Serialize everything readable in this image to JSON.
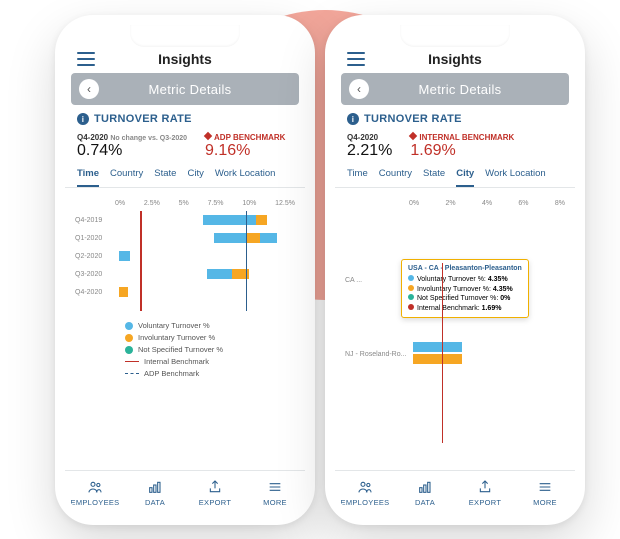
{
  "colors": {
    "brand": "#2c5f8d",
    "danger": "#c03028",
    "grey_bar": "#aab1b8",
    "blob": "#f3a79b",
    "series": {
      "voluntary": "#55b7e6",
      "involuntary": "#f6a623",
      "notspecified": "#2bb39a"
    }
  },
  "nav": {
    "employees": "EMPLOYEES",
    "data": "DATA",
    "export": "EXPORT",
    "more": "MORE"
  },
  "common": {
    "app_title": "Insights",
    "subheader": "Metric Details",
    "section_title": "TURNOVER RATE",
    "tabs": [
      "Time",
      "Country",
      "State",
      "City",
      "Work Location"
    ],
    "legend": {
      "vol": "Voluntary Turnover %",
      "inv": "Involuntary Turnover %",
      "ns": "Not Specified Turnover %",
      "ib": "Internal Benchmark",
      "adp": "ADP Benchmark"
    }
  },
  "left": {
    "active_tab": 0,
    "metric1": {
      "label": "Q4-2020",
      "sub": "No change\nvs. Q3-2020",
      "value": "0.74%"
    },
    "metric2": {
      "label": "ADP BENCHMARK",
      "value": "9.16%"
    },
    "chart": {
      "xticks": [
        "0%",
        "2.5%",
        "5%",
        "7.5%",
        "10%",
        "12.5%"
      ],
      "internal_benchmark_pct": 14,
      "adp_benchmark_pct": 73,
      "rows": [
        {
          "label": "Q4-2019",
          "segs": [
            {
              "c": "voluntary",
              "x": 48,
              "w": 30
            },
            {
              "c": "involuntary",
              "x": 78,
              "w": 6
            }
          ]
        },
        {
          "label": "Q1-2020",
          "segs": [
            {
              "c": "voluntary",
              "x": 54,
              "w": 18
            },
            {
              "c": "involuntary",
              "x": 72,
              "w": 8
            },
            {
              "c": "voluntary",
              "x": 80,
              "w": 10
            }
          ]
        },
        {
          "label": "Q2-2020",
          "segs": [
            {
              "c": "voluntary",
              "x": 0,
              "w": 6
            }
          ]
        },
        {
          "label": "Q3-2020",
          "segs": [
            {
              "c": "voluntary",
              "x": 50,
              "w": 14
            },
            {
              "c": "involuntary",
              "x": 64,
              "w": 10
            }
          ]
        },
        {
          "label": "Q4-2020",
          "segs": [
            {
              "c": "involuntary",
              "x": 0,
              "w": 5
            }
          ]
        }
      ]
    }
  },
  "right": {
    "active_tab": 3,
    "metric1": {
      "label": "Q4-2020",
      "value": "2.21%"
    },
    "metric2": {
      "label": "INTERNAL BENCHMARK",
      "value": "1.69%"
    },
    "chart": {
      "xticks": [
        "0%",
        "2%",
        "4%",
        "6%",
        "8%"
      ],
      "internal_benchmark_pct": 21,
      "rows": [
        {
          "label": "CA ...",
          "segs": [
            {
              "c": "voluntary",
              "x": 0,
              "w": 38
            },
            {
              "c": "involuntary",
              "x": 38,
              "w": 38
            }
          ]
        },
        {
          "label": "NJ - Roseland-Ro...",
          "segs": [
            {
              "c": "voluntary",
              "x": 0,
              "w": 32
            },
            {
              "c": "involuntary",
              "x": 0,
              "w": 32,
              "y": 12
            }
          ]
        }
      ]
    },
    "tooltip": {
      "title": "USA - CA - Pleasanton-Pleasanton",
      "lines": [
        {
          "c": "voluntary",
          "label": "Voluntary Turnover %:",
          "val": "4.35%"
        },
        {
          "c": "involuntary",
          "label": "Involuntary Turnover %:",
          "val": "4.35%"
        },
        {
          "c": "notspecified",
          "label": "Not Specified Turnover %:",
          "val": "0%"
        },
        {
          "c": "danger",
          "label": "Internal Benchmark:",
          "val": "1.69%"
        }
      ]
    }
  }
}
